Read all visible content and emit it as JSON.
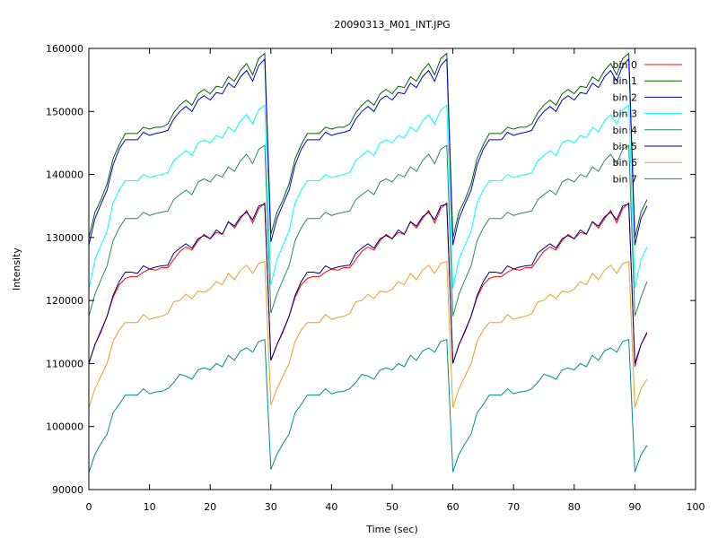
{
  "chart_data": {
    "type": "line",
    "title": "20090313_M01_INT.JPG",
    "xlabel": "Time (sec)",
    "ylabel": "Intensity",
    "xlim": [
      0,
      100
    ],
    "ylim": [
      90000,
      160000
    ],
    "xticks": [
      0,
      10,
      20,
      30,
      40,
      50,
      60,
      70,
      80,
      90,
      100
    ],
    "yticks": [
      90000,
      100000,
      110000,
      120000,
      130000,
      140000,
      150000,
      160000
    ],
    "grid": false,
    "legend_position": "top-right",
    "x": [
      0,
      1,
      2,
      3,
      4,
      5,
      6,
      7,
      8,
      9,
      10,
      11,
      12,
      13,
      14,
      15,
      16,
      17,
      18,
      19,
      20,
      21,
      22,
      23,
      24,
      25,
      26,
      27,
      28,
      29,
      30,
      31,
      32,
      33,
      34,
      35,
      36,
      37,
      38,
      39,
      40,
      41,
      42,
      43,
      44,
      45,
      46,
      47,
      48,
      49,
      50,
      51,
      52,
      53,
      54,
      55,
      56,
      57,
      58,
      59,
      60,
      61,
      62,
      63,
      64,
      65,
      66,
      67,
      68,
      69,
      70,
      71,
      72,
      73,
      74,
      75,
      76,
      77,
      78,
      79,
      80,
      81,
      82,
      83,
      84,
      85,
      86,
      87,
      88,
      89,
      90,
      91,
      92
    ],
    "series": [
      {
        "name": "bin 0",
        "color": "#ff0000",
        "values": [
          110000,
          113000,
          115000,
          117500,
          120500,
          122500,
          123500,
          123800,
          123800,
          124500,
          125000,
          124800,
          125200,
          125200,
          126500,
          127800,
          128500,
          128000,
          129500,
          130500,
          129800,
          130800,
          130500,
          132500,
          131500,
          133000,
          134300,
          132300,
          134600,
          135500,
          110500,
          113000,
          115000,
          117500,
          120500,
          122500,
          123500,
          123800,
          123800,
          124500,
          125000,
          124800,
          125200,
          125200,
          126500,
          127800,
          128500,
          128000,
          129500,
          130500,
          129800,
          130800,
          130500,
          132500,
          131500,
          133000,
          134300,
          132300,
          134600,
          135500,
          110000,
          113000,
          115000,
          117500,
          120500,
          122500,
          123500,
          123800,
          123800,
          124500,
          125000,
          124800,
          125200,
          125200,
          126500,
          127800,
          128500,
          128000,
          129500,
          130500,
          129800,
          130800,
          130500,
          132500,
          131500,
          133000,
          134300,
          132300,
          134600,
          135500,
          109500,
          113000,
          115000
        ]
      },
      {
        "name": "bin 1",
        "color": "#006400",
        "values": [
          130000,
          134000,
          136000,
          138500,
          142500,
          144700,
          146500,
          146500,
          146500,
          147500,
          147200,
          147500,
          147500,
          148000,
          149800,
          151000,
          151800,
          151000,
          152800,
          153500,
          152800,
          154000,
          153800,
          155500,
          154800,
          156500,
          157600,
          155800,
          158400,
          159200,
          130500,
          134000,
          136000,
          138500,
          142500,
          144700,
          146500,
          146500,
          146500,
          147500,
          147200,
          147500,
          147500,
          148000,
          149800,
          151000,
          151800,
          151000,
          152800,
          153500,
          152800,
          154000,
          153800,
          155500,
          154800,
          156500,
          157600,
          155800,
          158400,
          159200,
          130000,
          134000,
          136000,
          138500,
          142500,
          144700,
          146500,
          146500,
          146500,
          147500,
          147200,
          147500,
          147500,
          148000,
          149800,
          151000,
          151800,
          151000,
          152800,
          153500,
          152800,
          154000,
          153800,
          155500,
          154800,
          156500,
          157600,
          155800,
          158400,
          159200,
          130000,
          134000,
          136000
        ]
      },
      {
        "name": "bin 2",
        "color": "#0000cd",
        "values": [
          128800,
          133000,
          135300,
          137500,
          141500,
          144000,
          145500,
          145500,
          145500,
          146700,
          146200,
          146500,
          146700,
          147000,
          148800,
          150000,
          150800,
          150000,
          151800,
          152500,
          151800,
          153000,
          152800,
          154500,
          153800,
          155500,
          156500,
          154800,
          157300,
          158300,
          129300,
          133000,
          135300,
          137500,
          141500,
          144000,
          145500,
          145500,
          145500,
          146700,
          146200,
          146500,
          146700,
          147000,
          148800,
          150000,
          150800,
          150000,
          151800,
          152500,
          151800,
          153000,
          152800,
          154500,
          153800,
          155500,
          156500,
          154800,
          157300,
          158300,
          128800,
          133000,
          135300,
          137500,
          141500,
          144000,
          145500,
          145500,
          145500,
          146700,
          146200,
          146500,
          146700,
          147000,
          148800,
          150000,
          150800,
          150000,
          151800,
          152500,
          151800,
          153000,
          152800,
          154500,
          153800,
          155500,
          156500,
          154800,
          157300,
          158300,
          128800,
          133000,
          135000
        ]
      },
      {
        "name": "bin 3",
        "color": "#00ffff",
        "values": [
          121800,
          126500,
          128800,
          131000,
          135500,
          137500,
          139000,
          139000,
          139000,
          140000,
          139500,
          139800,
          140000,
          140300,
          142200,
          143000,
          143800,
          143000,
          145000,
          145500,
          145000,
          146200,
          145800,
          147500,
          146800,
          148500,
          149500,
          148000,
          150300,
          151000,
          122500,
          126500,
          128800,
          131000,
          135500,
          137500,
          139000,
          139000,
          139000,
          140000,
          139500,
          139800,
          140000,
          140300,
          142200,
          143000,
          143800,
          143000,
          145000,
          145500,
          145000,
          146200,
          145800,
          147500,
          146800,
          148500,
          149500,
          148000,
          150300,
          151000,
          122000,
          126500,
          128800,
          131000,
          135500,
          137500,
          139000,
          139000,
          139000,
          140000,
          139500,
          139800,
          140000,
          140300,
          142200,
          143000,
          143800,
          143000,
          145000,
          145500,
          145000,
          146200,
          145800,
          147500,
          146800,
          148500,
          149500,
          148000,
          150300,
          151000,
          122000,
          126500,
          128500
        ]
      },
      {
        "name": "bin 4",
        "color": "#2e8b57",
        "values": [
          117500,
          121000,
          123300,
          125500,
          129500,
          131500,
          133000,
          133000,
          133000,
          134000,
          133500,
          133800,
          134000,
          134200,
          136000,
          136800,
          137500,
          136800,
          138800,
          139300,
          138800,
          140000,
          139600,
          141200,
          140500,
          142200,
          143200,
          141700,
          144000,
          144600,
          118000,
          121000,
          123300,
          125500,
          129500,
          131500,
          133000,
          133000,
          133000,
          134000,
          133500,
          133800,
          134000,
          134200,
          136000,
          136800,
          137500,
          136800,
          138800,
          139300,
          138800,
          140000,
          139600,
          141200,
          140500,
          142200,
          143200,
          141700,
          144000,
          144600,
          117500,
          121000,
          123300,
          125500,
          129500,
          131500,
          133000,
          133000,
          133000,
          134000,
          133500,
          133800,
          134000,
          134200,
          136000,
          136800,
          137500,
          136800,
          138800,
          139300,
          138800,
          140000,
          139600,
          141200,
          140500,
          142200,
          143200,
          141700,
          144000,
          144600,
          117500,
          120500,
          123000
        ]
      },
      {
        "name": "bin 5",
        "color": "#000080",
        "values": [
          110000,
          113000,
          115200,
          117500,
          120800,
          123000,
          124500,
          124500,
          124300,
          125500,
          125000,
          125300,
          125500,
          125600,
          127500,
          128300,
          129000,
          128300,
          129800,
          130300,
          129800,
          131200,
          130500,
          132500,
          131800,
          133300,
          134000,
          132800,
          135000,
          135300,
          110500,
          113000,
          115200,
          117500,
          120800,
          123000,
          124500,
          124500,
          124300,
          125500,
          125000,
          125300,
          125500,
          125600,
          127500,
          128300,
          129000,
          128300,
          129800,
          130300,
          129800,
          131200,
          130500,
          132500,
          131800,
          133300,
          134000,
          132800,
          135000,
          135300,
          110000,
          113000,
          115200,
          117500,
          120800,
          123000,
          124500,
          124500,
          124300,
          125500,
          125000,
          125300,
          125500,
          125600,
          127500,
          128300,
          129000,
          128300,
          129800,
          130300,
          129800,
          131200,
          130500,
          132500,
          131800,
          133300,
          134000,
          132800,
          135000,
          135300,
          110000,
          113000,
          114800
        ]
      },
      {
        "name": "bin 6",
        "color": "#e8a020",
        "values": [
          103000,
          106000,
          108000,
          110000,
          113500,
          115300,
          116500,
          116500,
          116500,
          117800,
          117000,
          117300,
          117500,
          117900,
          119800,
          120000,
          121000,
          120300,
          121500,
          121300,
          121800,
          123000,
          122500,
          124300,
          123300,
          124800,
          125600,
          124300,
          125900,
          126200,
          103400,
          106000,
          108000,
          110000,
          113500,
          115300,
          116500,
          116500,
          116500,
          117800,
          117000,
          117300,
          117500,
          117900,
          119800,
          120000,
          121000,
          120300,
          121500,
          121300,
          121800,
          123000,
          122500,
          124300,
          123300,
          124800,
          125600,
          124300,
          125900,
          126200,
          103000,
          106000,
          108000,
          110000,
          113500,
          115300,
          116500,
          116500,
          116500,
          117800,
          117000,
          117300,
          117500,
          117900,
          119800,
          120000,
          121000,
          120300,
          121500,
          121300,
          121800,
          123000,
          122500,
          124300,
          123300,
          124800,
          125600,
          124300,
          125900,
          126200,
          103000,
          106000,
          107500
        ]
      },
      {
        "name": "bin 7",
        "color": "#008b8b",
        "values": [
          92700,
          95600,
          97300,
          98800,
          102200,
          103500,
          105000,
          105000,
          105000,
          106000,
          105200,
          105500,
          105600,
          106000,
          107000,
          108300,
          108000,
          107500,
          109000,
          109300,
          109000,
          110000,
          109500,
          111300,
          110500,
          112000,
          112500,
          111800,
          113500,
          113800,
          93200,
          95600,
          97300,
          98800,
          102200,
          103500,
          105000,
          105000,
          105000,
          106000,
          105200,
          105500,
          105600,
          106000,
          107000,
          108300,
          108000,
          107500,
          109000,
          109300,
          109000,
          110000,
          109500,
          111300,
          110500,
          112000,
          112500,
          111800,
          113500,
          113800,
          92800,
          95600,
          97300,
          98800,
          102200,
          103500,
          105000,
          105000,
          105000,
          106000,
          105200,
          105500,
          105600,
          106000,
          107000,
          108300,
          108000,
          107500,
          109000,
          109300,
          109000,
          110000,
          109500,
          111300,
          110500,
          112000,
          112500,
          111800,
          113500,
          113800,
          92800,
          95500,
          97000
        ]
      }
    ]
  }
}
